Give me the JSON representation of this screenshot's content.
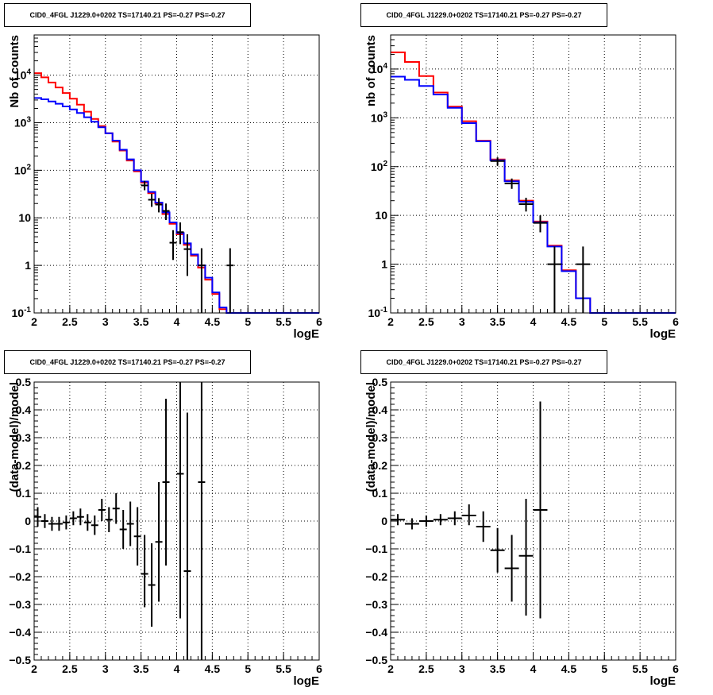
{
  "colors": {
    "model_red": "#ff0000",
    "model_blue": "#0000ff",
    "data": "#000000",
    "grid": "#000000"
  },
  "chart_data": [
    {
      "type": "line",
      "title": "CID0_4FGL J1229.0+0202 TS=17140.21 PS=-0.27 PS=-0.27",
      "xlabel": "logE",
      "ylabel": "Nb of counts",
      "ylog": true,
      "xlim": [
        2,
        6
      ],
      "ylim": [
        0.1,
        70000
      ],
      "grid": true,
      "x_ticks": [
        "2",
        "2.5",
        "3",
        "3.5",
        "4",
        "4.5",
        "5",
        "5.5",
        "6"
      ],
      "y_ticks": [
        "10^-1",
        "1",
        "10",
        "10^2",
        "10^3",
        "10^4"
      ],
      "bin_edges": [
        2.0,
        2.1,
        2.2,
        2.3,
        2.4,
        2.5,
        2.6,
        2.7,
        2.8,
        2.9,
        3.0,
        3.1,
        3.2,
        3.3,
        3.4,
        3.5,
        3.6,
        3.7,
        3.8,
        3.9,
        4.0,
        4.1,
        4.2,
        4.3,
        4.4,
        4.5,
        4.6,
        4.7,
        4.8,
        4.9,
        5.0,
        5.1,
        5.2,
        5.3,
        5.4,
        5.5,
        5.6,
        5.7,
        5.8,
        5.9,
        6.0
      ],
      "series": [
        {
          "values": [
            11000,
            9000,
            7000,
            5500,
            4200,
            3200,
            2400,
            1700,
            1200,
            850,
            600,
            400,
            260,
            160,
            95,
            55,
            33,
            20,
            12,
            7.5,
            4.5,
            2.7,
            1.6,
            0.9,
            0.5,
            0.25,
            0.12,
            0.1,
            0.1,
            0.1,
            0.1,
            0.1,
            0.1,
            0.1,
            0.1,
            0.1,
            0.1,
            0.1,
            0.1,
            0.1
          ]
        },
        {
          "values": [
            3300,
            3100,
            2800,
            2500,
            2200,
            1900,
            1600,
            1300,
            1050,
            800,
            600,
            420,
            270,
            170,
            100,
            58,
            35,
            21,
            13,
            8,
            4.8,
            2.9,
            1.7,
            1.0,
            0.55,
            0.27,
            0.13,
            0.1,
            0.1,
            0.1,
            0.1,
            0.1,
            0.1,
            0.1,
            0.1,
            0.1,
            0.1,
            0.1,
            0.1,
            0.1
          ]
        }
      ],
      "points": [
        {
          "x": 3.55,
          "y": 48,
          "lo": 38,
          "hi": 60
        },
        {
          "x": 3.65,
          "y": 24,
          "lo": 17,
          "hi": 32
        },
        {
          "x": 3.75,
          "y": 19,
          "lo": 13,
          "hi": 26
        },
        {
          "x": 3.85,
          "y": 14,
          "lo": 9,
          "hi": 20
        },
        {
          "x": 3.95,
          "y": 3,
          "lo": 1.3,
          "hi": 5.5
        },
        {
          "x": 4.05,
          "y": 5,
          "lo": 2.8,
          "hi": 8
        },
        {
          "x": 4.15,
          "y": 2.2,
          "lo": 0.6,
          "hi": 4.5
        },
        {
          "x": 4.35,
          "y": 1,
          "lo": 0.1,
          "hi": 2.3
        },
        {
          "x": 4.75,
          "y": 1,
          "lo": 0.1,
          "hi": 2.3
        }
      ],
      "x_halfwidth": 0.05
    },
    {
      "type": "line",
      "title": "CID0_4FGL J1229.0+0202 TS=17140.21 PS=-0.27 PS=-0.27",
      "xlabel": "logE",
      "ylabel": "nb of counts",
      "ylog": true,
      "xlim": [
        2,
        6
      ],
      "ylim": [
        0.1,
        50000
      ],
      "grid": true,
      "x_ticks": [
        "2",
        "2.5",
        "3",
        "3.5",
        "4",
        "4.5",
        "5",
        "5.5",
        "6"
      ],
      "y_ticks": [
        "10^-1",
        "1",
        "10",
        "10^2",
        "10^3",
        "10^4"
      ],
      "bin_edges": [
        2.0,
        2.2,
        2.4,
        2.6,
        2.8,
        3.0,
        3.2,
        3.4,
        3.6,
        3.8,
        4.0,
        4.2,
        4.4,
        4.6,
        4.8,
        5.0,
        5.2,
        5.4,
        5.6,
        5.8,
        6.0
      ],
      "series": [
        {
          "values": [
            22000,
            14000,
            7200,
            3300,
            1700,
            850,
            340,
            140,
            52,
            20,
            7.5,
            2.4,
            0.75,
            0.2,
            0.1,
            0.1,
            0.1,
            0.1,
            0.1,
            0.1
          ]
        },
        {
          "values": [
            7000,
            6000,
            4500,
            3000,
            1600,
            780,
            330,
            135,
            50,
            19,
            7.2,
            2.3,
            0.72,
            0.2,
            0.1,
            0.1,
            0.1,
            0.1,
            0.1,
            0.1
          ]
        }
      ],
      "points": [
        {
          "x": 3.5,
          "y": 130,
          "lo": 105,
          "hi": 155
        },
        {
          "x": 3.7,
          "y": 45,
          "lo": 35,
          "hi": 57
        },
        {
          "x": 3.9,
          "y": 17,
          "lo": 12,
          "hi": 23
        },
        {
          "x": 4.1,
          "y": 7,
          "lo": 4.5,
          "hi": 10
        },
        {
          "x": 4.3,
          "y": 1,
          "lo": 0.1,
          "hi": 2.3
        },
        {
          "x": 4.7,
          "y": 1,
          "lo": 0.1,
          "hi": 2.3
        }
      ],
      "x_halfwidth": 0.1
    },
    {
      "type": "scatter",
      "title": "CID0_4FGL J1229.0+0202 TS=17140.21 PS=-0.27 PS=-0.27",
      "xlabel": "logE",
      "ylabel": "(data-model)/model",
      "ylog": false,
      "xlim": [
        2,
        6
      ],
      "ylim": [
        -0.5,
        0.5
      ],
      "grid": true,
      "x_ticks": [
        "2",
        "2.5",
        "3",
        "3.5",
        "4",
        "4.5",
        "5",
        "5.5",
        "6"
      ],
      "y_ticks": [
        "-0.5",
        "-0.4",
        "-0.3",
        "-0.2",
        "-0.1",
        "0",
        "0.1",
        "0.2",
        "0.3",
        "0.4",
        "0.5"
      ],
      "points": [
        {
          "x": 2.05,
          "y": 0.015,
          "lo": -0.02,
          "hi": 0.05
        },
        {
          "x": 2.15,
          "y": 0.0,
          "lo": -0.025,
          "hi": 0.025
        },
        {
          "x": 2.25,
          "y": -0.01,
          "lo": -0.035,
          "hi": 0.015
        },
        {
          "x": 2.35,
          "y": -0.01,
          "lo": -0.035,
          "hi": 0.015
        },
        {
          "x": 2.45,
          "y": -0.005,
          "lo": -0.03,
          "hi": 0.02
        },
        {
          "x": 2.55,
          "y": 0.01,
          "lo": -0.015,
          "hi": 0.035
        },
        {
          "x": 2.65,
          "y": 0.015,
          "lo": -0.015,
          "hi": 0.045
        },
        {
          "x": 2.75,
          "y": -0.005,
          "lo": -0.035,
          "hi": 0.025
        },
        {
          "x": 2.85,
          "y": -0.015,
          "lo": -0.05,
          "hi": 0.02
        },
        {
          "x": 2.95,
          "y": 0.04,
          "lo": 0.0,
          "hi": 0.08
        },
        {
          "x": 3.05,
          "y": 0.005,
          "lo": -0.04,
          "hi": 0.05
        },
        {
          "x": 3.15,
          "y": 0.045,
          "lo": -0.01,
          "hi": 0.1
        },
        {
          "x": 3.25,
          "y": -0.03,
          "lo": -0.1,
          "hi": 0.04
        },
        {
          "x": 3.35,
          "y": -0.01,
          "lo": -0.09,
          "hi": 0.07
        },
        {
          "x": 3.45,
          "y": -0.055,
          "lo": -0.16,
          "hi": 0.05
        },
        {
          "x": 3.55,
          "y": -0.19,
          "lo": -0.31,
          "hi": -0.05
        },
        {
          "x": 3.65,
          "y": -0.23,
          "lo": -0.38,
          "hi": -0.08
        },
        {
          "x": 3.75,
          "y": -0.075,
          "lo": -0.29,
          "hi": 0.14
        },
        {
          "x": 3.85,
          "y": 0.14,
          "lo": -0.16,
          "hi": 0.44
        },
        {
          "x": 4.05,
          "y": 0.17,
          "lo": -0.35,
          "hi": 0.5
        },
        {
          "x": 4.15,
          "y": -0.18,
          "lo": -0.5,
          "hi": 0.39
        },
        {
          "x": 4.35,
          "y": 0.14,
          "lo": -0.5,
          "hi": 0.5
        }
      ],
      "x_halfwidth": 0.05
    },
    {
      "type": "scatter",
      "title": "CID0_4FGL J1229.0+0202 TS=17140.21 PS=-0.27 PS=-0.27",
      "xlabel": "logE",
      "ylabel": "(data-model)/model",
      "ylog": false,
      "xlim": [
        2,
        6
      ],
      "ylim": [
        -0.5,
        0.5
      ],
      "grid": true,
      "x_ticks": [
        "2",
        "2.5",
        "3",
        "3.5",
        "4",
        "4.5",
        "5",
        "5.5",
        "6"
      ],
      "y_ticks": [
        "-0.5",
        "-0.4",
        "-0.3",
        "-0.2",
        "-0.1",
        "0",
        "0.1",
        "0.2",
        "0.3",
        "0.4",
        "0.5"
      ],
      "points": [
        {
          "x": 2.1,
          "y": 0.005,
          "lo": -0.015,
          "hi": 0.025
        },
        {
          "x": 2.3,
          "y": -0.01,
          "lo": -0.03,
          "hi": 0.01
        },
        {
          "x": 2.5,
          "y": 0.0,
          "lo": -0.02,
          "hi": 0.02
        },
        {
          "x": 2.7,
          "y": 0.005,
          "lo": -0.015,
          "hi": 0.025
        },
        {
          "x": 2.9,
          "y": 0.01,
          "lo": -0.015,
          "hi": 0.035
        },
        {
          "x": 3.1,
          "y": 0.02,
          "lo": -0.015,
          "hi": 0.06
        },
        {
          "x": 3.3,
          "y": -0.02,
          "lo": -0.075,
          "hi": 0.035
        },
        {
          "x": 3.5,
          "y": -0.105,
          "lo": -0.185,
          "hi": -0.025
        },
        {
          "x": 3.7,
          "y": -0.17,
          "lo": -0.29,
          "hi": -0.05
        },
        {
          "x": 3.9,
          "y": -0.125,
          "lo": -0.34,
          "hi": 0.08
        },
        {
          "x": 4.1,
          "y": 0.04,
          "lo": -0.35,
          "hi": 0.43
        }
      ],
      "x_halfwidth": 0.1
    }
  ]
}
